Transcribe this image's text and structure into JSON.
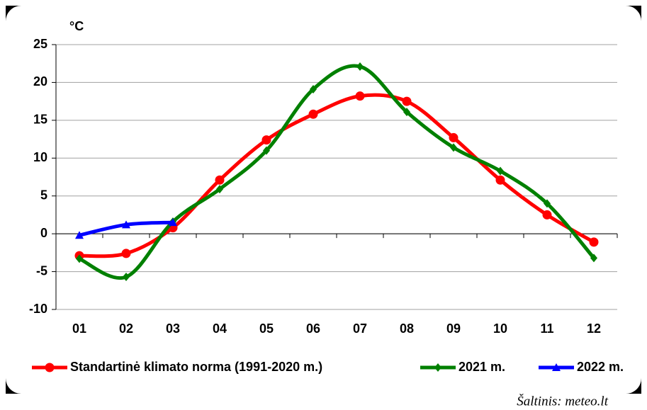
{
  "chart_data": {
    "type": "line",
    "y_label": "°C",
    "categories": [
      "01",
      "02",
      "03",
      "04",
      "05",
      "06",
      "07",
      "08",
      "09",
      "10",
      "11",
      "12"
    ],
    "series": [
      {
        "name": "Standartinė klimato norma (1991-2020 m.)",
        "color": "#ff0000",
        "marker": "circle",
        "values": [
          -2.9,
          -2.6,
          0.8,
          7.1,
          12.4,
          15.8,
          18.2,
          17.5,
          12.7,
          7.1,
          2.5,
          -1.1
        ]
      },
      {
        "name": "2021 m.",
        "color": "#008000",
        "marker": "diamond",
        "values": [
          -3.3,
          -5.7,
          1.6,
          5.9,
          11.0,
          19.1,
          22.1,
          16.1,
          11.4,
          8.3,
          4.0,
          -3.2
        ]
      },
      {
        "name": "2022 m.",
        "color": "#0000ff",
        "marker": "triangle",
        "values": [
          -0.2,
          1.2,
          1.5,
          null,
          null,
          null,
          null,
          null,
          null,
          null,
          null,
          null
        ]
      }
    ],
    "ylim": [
      -10,
      25
    ],
    "yticks": [
      -10,
      -5,
      0,
      5,
      10,
      15,
      20,
      25
    ],
    "grid": true,
    "legend": "bottom",
    "source": "Šaltinis: meteo.lt"
  }
}
